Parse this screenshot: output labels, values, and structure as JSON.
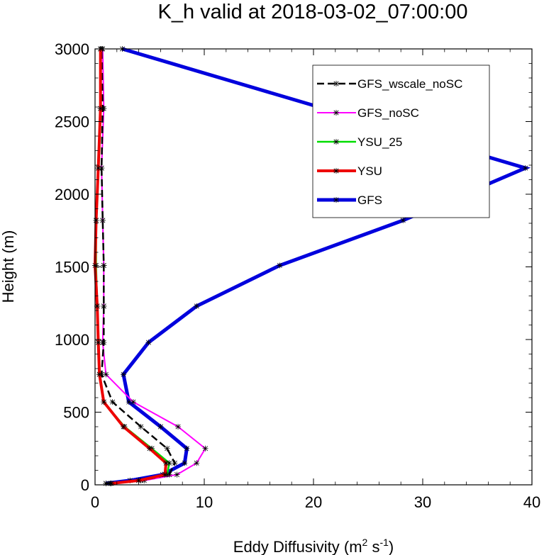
{
  "chart_data": {
    "type": "line",
    "title": "K_h valid at 2018-03-02_07:00:00",
    "xlabel": "Eddy Diffusivity",
    "xlabel_unit_parts": [
      "m",
      "2",
      " s",
      "-1"
    ],
    "ylabel": "Height (m)",
    "xlim": [
      0,
      40
    ],
    "ylim": [
      0,
      3000
    ],
    "xticks": [
      0,
      10,
      20,
      30,
      40
    ],
    "xtick_labels": [
      "0",
      "10",
      "20",
      "30",
      "40"
    ],
    "yticks": [
      0,
      500,
      1000,
      1500,
      2000,
      2500,
      3000
    ],
    "ytick_labels": [
      "0",
      "500",
      "1000",
      "1500",
      "2000",
      "2500",
      "3000"
    ],
    "legend_position": "top-right",
    "grid": false,
    "series": [
      {
        "name": "GFS_wscale_noSC",
        "color": "#000000",
        "style": "dashed",
        "heights": [
          10,
          30,
          70,
          150,
          250,
          400,
          570,
          760,
          980,
          1230,
          1510,
          1820,
          2180,
          2590,
          3000
        ],
        "values": [
          1.0,
          4.2,
          6.8,
          7.3,
          6.6,
          4.2,
          1.6,
          0.6,
          0.8,
          0.8,
          0.8,
          0.7,
          0.6,
          0.7,
          0.6
        ]
      },
      {
        "name": "GFS_noSC",
        "color": "#ff00ff",
        "style": "solid",
        "heights": [
          10,
          30,
          70,
          150,
          250,
          400,
          570,
          760,
          980,
          1230,
          1510,
          1820,
          2180,
          2590,
          3000
        ],
        "values": [
          1.4,
          4.5,
          7.5,
          9.3,
          10.1,
          7.6,
          3.5,
          1.0,
          0.7,
          0.8,
          0.8,
          0.7,
          0.6,
          0.8,
          0.7
        ]
      },
      {
        "name": "YSU_25",
        "color": "#00dd00",
        "style": "solid",
        "heights": [
          10,
          30,
          70,
          150,
          250,
          400,
          570,
          760,
          980,
          1230,
          1510,
          1820,
          2180,
          2590,
          3000
        ],
        "values": [
          1.5,
          4.0,
          6.6,
          6.8,
          5.2,
          2.7,
          0.8,
          0.4,
          0.3,
          0.2,
          0.1,
          0.1,
          0.3,
          0.5,
          0.5
        ]
      },
      {
        "name": "YSU",
        "color": "#ee0000",
        "style": "solid",
        "heights": [
          10,
          30,
          70,
          150,
          250,
          400,
          570,
          760,
          980,
          1230,
          1510,
          1820,
          2180,
          2590,
          3000
        ],
        "values": [
          1.5,
          4.0,
          6.4,
          6.5,
          5.0,
          2.6,
          0.8,
          0.4,
          0.3,
          0.2,
          0.0,
          0.1,
          0.3,
          0.5,
          0.5
        ]
      },
      {
        "name": "GFS",
        "color": "#0000dd",
        "style": "solid",
        "heights": [
          10,
          30,
          70,
          150,
          250,
          400,
          570,
          760,
          980,
          1230,
          1510,
          1820,
          2180,
          3000
        ],
        "values": [
          1.0,
          3.2,
          6.2,
          8.2,
          8.4,
          6.0,
          3.1,
          2.6,
          4.9,
          9.3,
          16.9,
          28.2,
          39.4,
          2.5
        ]
      }
    ]
  }
}
